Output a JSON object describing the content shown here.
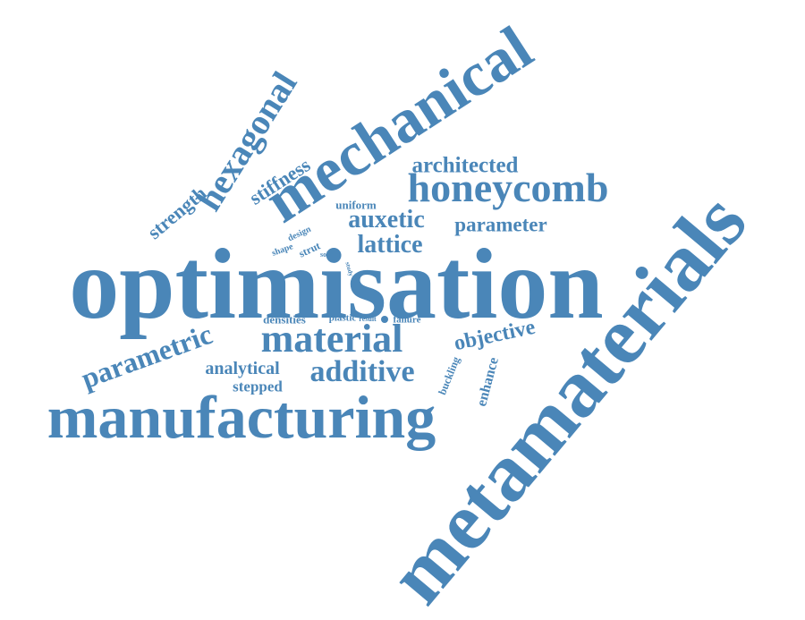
{
  "word_cloud": {
    "color": "#4a86b8",
    "words": [
      {
        "id": "optimisation",
        "text": "optimisation"
      },
      {
        "id": "metamaterials",
        "text": "metamaterials"
      },
      {
        "id": "manufacturing",
        "text": "manufacturing"
      },
      {
        "id": "mechanical",
        "text": "mechanical"
      },
      {
        "id": "honeycomb",
        "text": "honeycomb"
      },
      {
        "id": "material",
        "text": "material"
      },
      {
        "id": "hexagonal",
        "text": "hexagonal"
      },
      {
        "id": "additive",
        "text": "additive"
      },
      {
        "id": "parametric",
        "text": "parametric"
      },
      {
        "id": "architected",
        "text": "architected"
      },
      {
        "id": "auxetic",
        "text": "auxetic"
      },
      {
        "id": "lattice",
        "text": "lattice"
      },
      {
        "id": "parameter",
        "text": "parameter"
      },
      {
        "id": "objective",
        "text": "objective"
      },
      {
        "id": "stiffness",
        "text": "stiffness"
      },
      {
        "id": "strength",
        "text": "strength"
      },
      {
        "id": "analytical",
        "text": "analytical"
      },
      {
        "id": "stepped",
        "text": "stepped"
      },
      {
        "id": "enhance",
        "text": "enhance"
      },
      {
        "id": "buckling",
        "text": "buckling"
      },
      {
        "id": "uniform",
        "text": "uniform"
      },
      {
        "id": "densities",
        "text": "densities"
      },
      {
        "id": "design",
        "text": "design"
      },
      {
        "id": "strut",
        "text": "strut"
      },
      {
        "id": "shape",
        "text": "shape"
      },
      {
        "id": "solid",
        "text": "solid"
      },
      {
        "id": "study",
        "text": "study"
      },
      {
        "id": "plastic",
        "text": "plastic"
      },
      {
        "id": "result",
        "text": "result"
      },
      {
        "id": "failure",
        "text": "failure"
      }
    ]
  }
}
